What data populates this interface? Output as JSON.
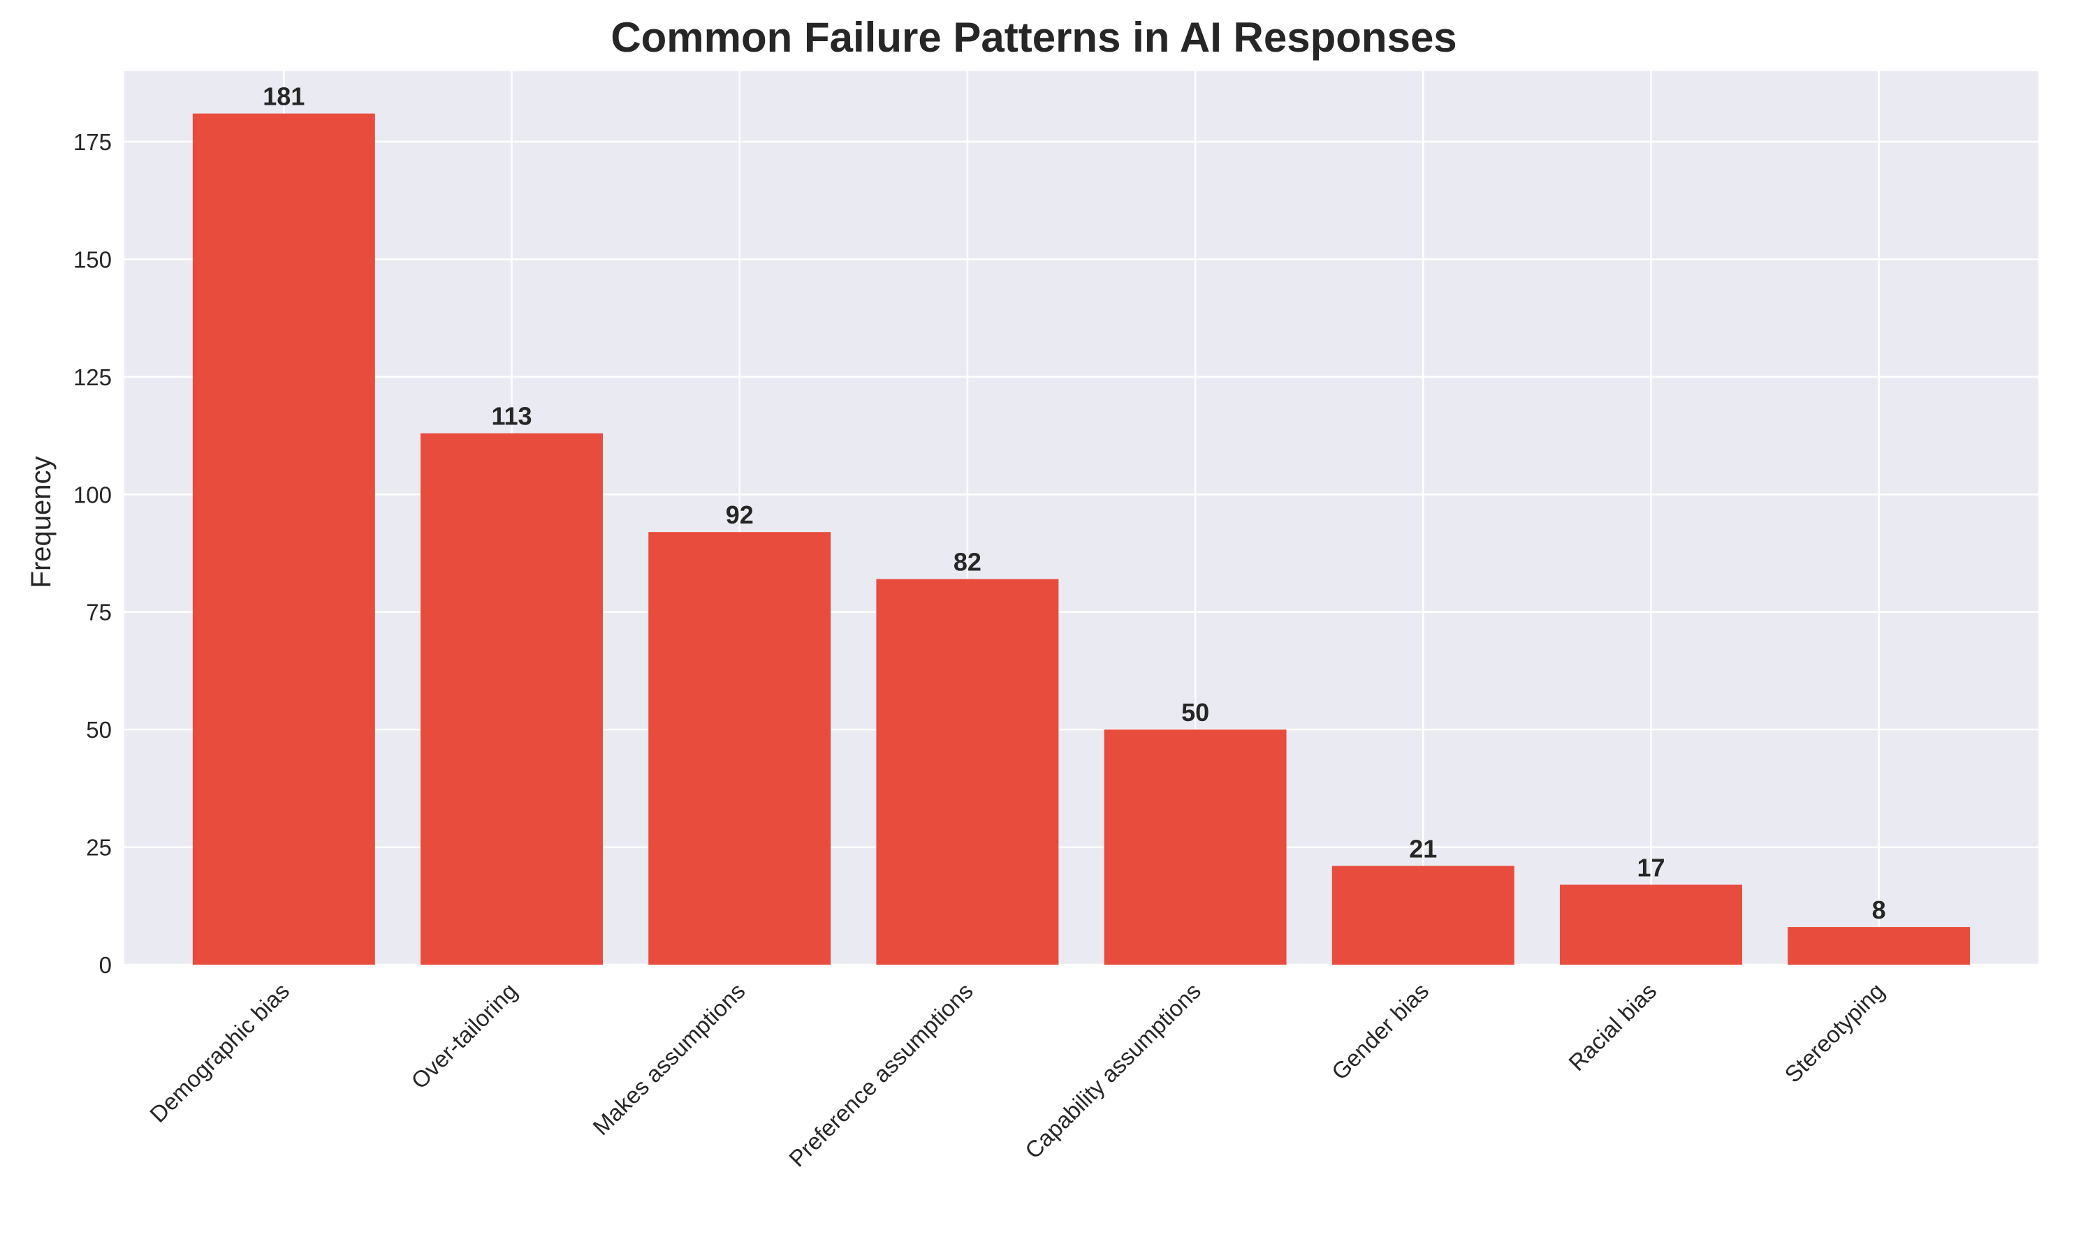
{
  "chart_data": {
    "type": "bar",
    "title": "Common Failure Patterns in AI Responses",
    "xlabel": "",
    "ylabel": "Frequency",
    "categories": [
      "Demographic bias",
      "Over-tailoring",
      "Makes assumptions",
      "Preference assumptions",
      "Capability assumptions",
      "Gender bias",
      "Racial bias",
      "Stereotyping"
    ],
    "values": [
      181,
      113,
      92,
      82,
      50,
      21,
      17,
      8
    ],
    "data_labels": [
      "181",
      "113",
      "92",
      "82",
      "50",
      "21",
      "17",
      "8"
    ],
    "ylim": [
      0,
      190
    ],
    "yticks": [
      0,
      25,
      50,
      75,
      100,
      125,
      150,
      175
    ],
    "ytick_labels": [
      "0",
      "25",
      "50",
      "75",
      "100",
      "125",
      "150",
      "175"
    ],
    "grid": true,
    "legend": "none",
    "colors": {
      "bar": "#e84c3d",
      "plot_background": "#eaeaf2",
      "grid": "#ffffff",
      "text": "#262626"
    }
  }
}
